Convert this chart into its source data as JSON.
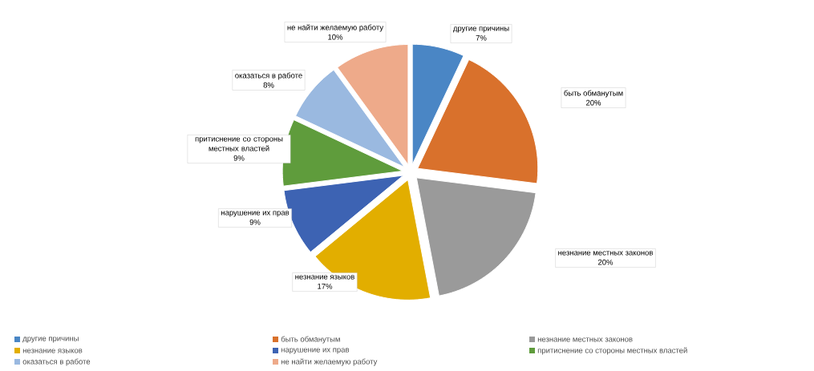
{
  "chart_data": {
    "type": "pie",
    "categories": [
      "другие причины",
      "быть обманутым",
      "незнание местных законов",
      "незнание языков",
      "нарушение их прав",
      "притиснение со стороны местных властей",
      "оказаться в работе",
      "не найти желаемую работу"
    ],
    "values": [
      7,
      20,
      20,
      17,
      9,
      9,
      8,
      10
    ],
    "value_labels": [
      "7%",
      "20%",
      "20%",
      "17%",
      "9%",
      "9%",
      "8%",
      "10%"
    ],
    "colors": [
      "#4a86c5",
      "#d9712c",
      "#9a9a9a",
      "#e2ae00",
      "#3d63b3",
      "#5f9c3c",
      "#9ab9e0",
      "#eeaa8a"
    ],
    "legend": "bottom"
  }
}
